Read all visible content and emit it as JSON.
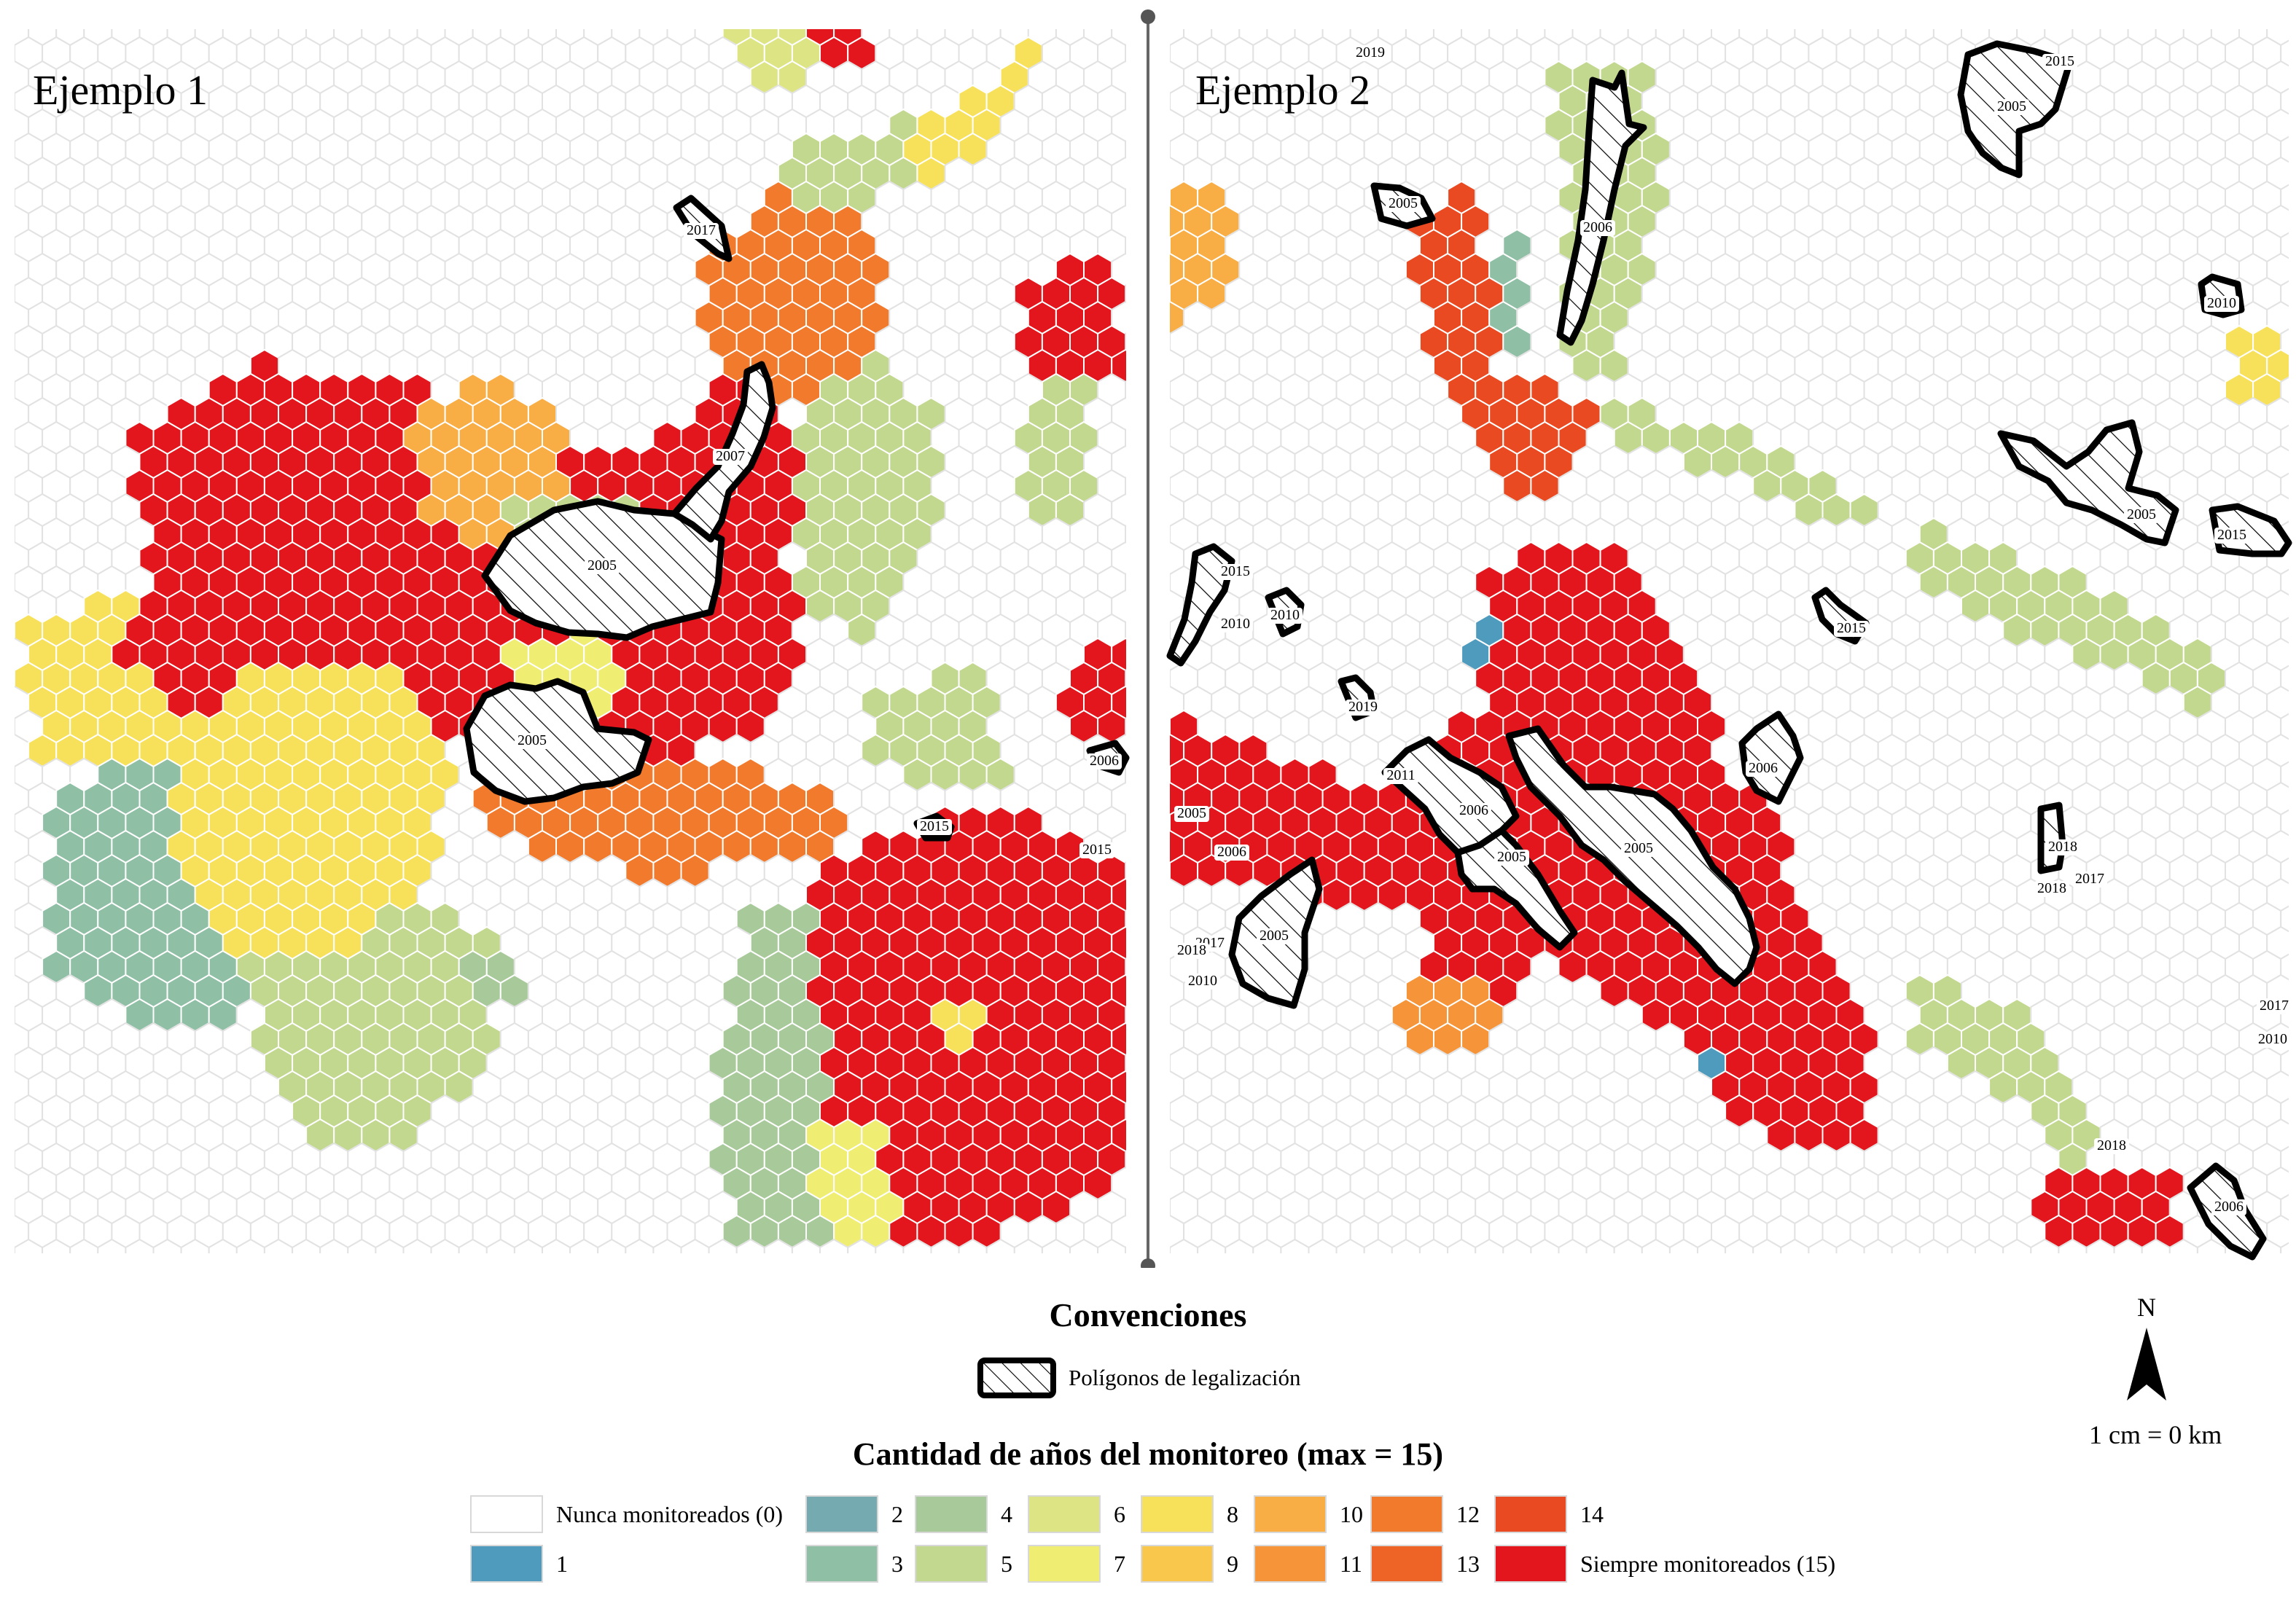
{
  "panels": [
    {
      "title": "Ejemplo 1"
    },
    {
      "title": "Ejemplo 2"
    }
  ],
  "legend": {
    "section_title": "Convenciones",
    "polygon_label": "Polígonos de legalización",
    "color_title": "Cantidad de años del monitoreo (max = 15)",
    "classes": [
      {
        "label": "Nunca monitoreados (0)",
        "value": 0,
        "color": "#ffffff"
      },
      {
        "label": "1",
        "value": 1,
        "color": "#4f9bbd"
      },
      {
        "label": "2",
        "value": 2,
        "color": "#74aab0"
      },
      {
        "label": "3",
        "value": 3,
        "color": "#8fbfa5"
      },
      {
        "label": "4",
        "value": 4,
        "color": "#a8c99a"
      },
      {
        "label": "5",
        "value": 5,
        "color": "#c2d88f"
      },
      {
        "label": "6",
        "value": 6,
        "color": "#dde483"
      },
      {
        "label": "7",
        "value": 7,
        "color": "#f0ee72"
      },
      {
        "label": "8",
        "value": 8,
        "color": "#f7e15a"
      },
      {
        "label": "9",
        "value": 9,
        "color": "#f8c74b"
      },
      {
        "label": "10",
        "value": 10,
        "color": "#f8ad45"
      },
      {
        "label": "11",
        "value": 11,
        "color": "#f59438"
      },
      {
        "label": "12",
        "value": 12,
        "color": "#f17a2d"
      },
      {
        "label": "13",
        "value": 13,
        "color": "#ee6426"
      },
      {
        "label": "14",
        "value": 14,
        "color": "#ea4a22"
      },
      {
        "label": "Siempre monitoreados (15)",
        "value": 15,
        "color": "#e3161d"
      }
    ]
  },
  "north_arrow": {
    "label": "N"
  },
  "scale": {
    "text": "1 cm = 0 km"
  },
  "polygon_year_labels": {
    "panel1": [
      "2017",
      "2007",
      "2005",
      "2005",
      "2015",
      "2006",
      "2015"
    ],
    "panel2": [
      "2019",
      "2015",
      "2005",
      "2005",
      "2006",
      "2010",
      "2005",
      "2015",
      "2015",
      "2010",
      "2010",
      "2015",
      "2019",
      "2011",
      "2006",
      "2006",
      "2005",
      "2005",
      "2005",
      "2006",
      "2017",
      "2005",
      "2018",
      "2018",
      "2018",
      "2017",
      "2017",
      "2010",
      "2018",
      "2010",
      "2006"
    ]
  }
}
